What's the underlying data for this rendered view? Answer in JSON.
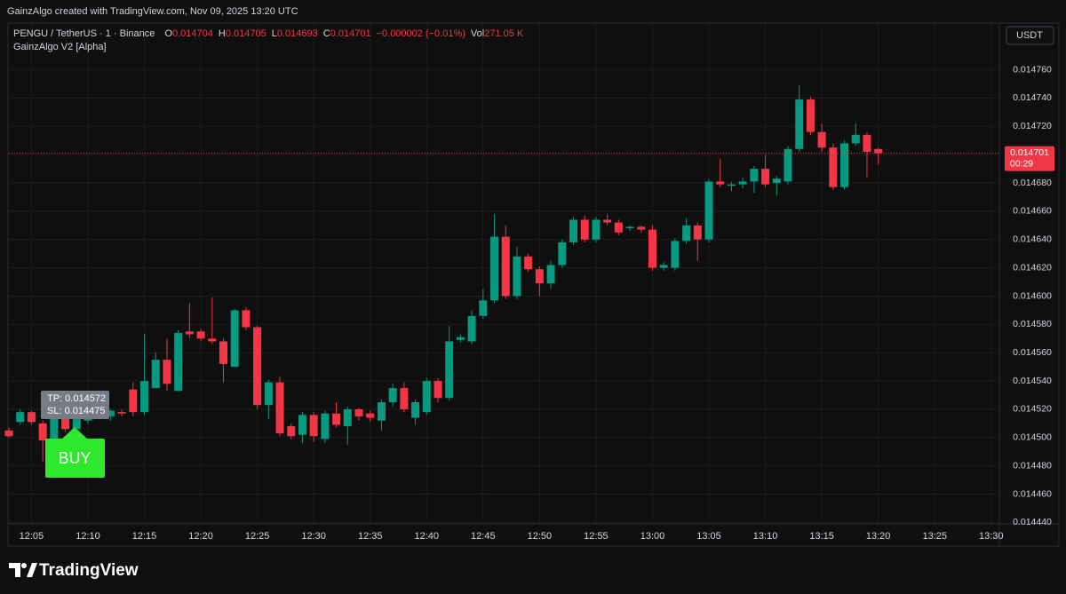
{
  "caption": "GainzAlgo created with TradingView.com, Nov 09, 2025 13:20 UTC",
  "brand": "TradingView",
  "chart_data": {
    "type": "candlestick",
    "title": "PENGU / TetherUS · 1 · Binance",
    "indicator": "GainzAlgo V2 [Alpha]",
    "header_ohlc": [
      {
        "key": "O",
        "value": "0.014704"
      },
      {
        "key": "H",
        "value": "0.014705"
      },
      {
        "key": "L",
        "value": "0.014693"
      },
      {
        "key": "C",
        "value": "0.014701"
      }
    ],
    "change": "−0.000002 (−0.01%)",
    "volume_key": "Vol",
    "volume": "271.05 K",
    "currency": "USDT",
    "up_color": "#089981",
    "down_color": "#f23645",
    "open": [
      0.014505,
      0.014511,
      0.014518,
      0.01451,
      0.014498,
      0.014514,
      0.014506,
      0.014512,
      0.014515,
      0.014515,
      0.014518,
      0.014534,
      0.014518,
      0.014535,
      0.014555,
      0.014533,
      0.014575,
      0.014575,
      0.01457,
      0.014568,
      0.01455,
      0.01459,
      0.014578,
      0.014523,
      0.014539,
      0.014508,
      0.014502,
      0.014516,
      0.014499,
      0.014517,
      0.014508,
      0.01452,
      0.014517,
      0.014512,
      0.014525,
      0.014535,
      0.014514,
      0.014518,
      0.01454,
      0.014528,
      0.014569,
      0.014568,
      0.014586,
      0.014597,
      0.014642,
      0.0146,
      0.014628,
      0.014619,
      0.014609,
      0.014622,
      0.014638,
      0.014654,
      0.01464,
      0.014654,
      0.014652,
      0.014648,
      0.014649,
      0.014647,
      0.01462,
      0.01462,
      0.014639,
      0.01465,
      0.01464,
      0.014681,
      0.014678,
      0.014679,
      0.014681,
      0.01469,
      0.01468,
      0.014681,
      0.014704,
      0.014739,
      0.014716,
      0.014705,
      0.014677,
      0.014708,
      0.014714,
      0.014704
    ],
    "high": [
      0.014507,
      0.01452,
      0.014519,
      0.014512,
      0.014518,
      0.014516,
      0.014515,
      0.014516,
      0.014518,
      0.01452,
      0.01452,
      0.014539,
      0.014573,
      0.01456,
      0.01457,
      0.014576,
      0.014595,
      0.014577,
      0.014599,
      0.01457,
      0.014591,
      0.014592,
      0.014579,
      0.014541,
      0.014543,
      0.01451,
      0.014518,
      0.014518,
      0.014519,
      0.014525,
      0.014522,
      0.014521,
      0.014519,
      0.014527,
      0.014538,
      0.014539,
      0.014527,
      0.014542,
      0.014542,
      0.014579,
      0.014573,
      0.01459,
      0.014605,
      0.014658,
      0.01465,
      0.014635,
      0.01463,
      0.014621,
      0.014625,
      0.01464,
      0.014656,
      0.014657,
      0.014656,
      0.014658,
      0.014654,
      0.01465,
      0.01465,
      0.01465,
      0.014624,
      0.014641,
      0.014655,
      0.014652,
      0.014683,
      0.014697,
      0.014681,
      0.014684,
      0.014692,
      0.0147,
      0.014685,
      0.014706,
      0.014749,
      0.014741,
      0.014722,
      0.014708,
      0.01471,
      0.014722,
      0.014716,
      0.014705
    ],
    "low": [
      0.0145,
      0.014509,
      0.014509,
      0.014483,
      0.014494,
      0.014504,
      0.014504,
      0.01451,
      0.014513,
      0.014512,
      0.014515,
      0.014515,
      0.014516,
      0.014535,
      0.014533,
      0.014533,
      0.01457,
      0.014568,
      0.014566,
      0.014539,
      0.01455,
      0.014576,
      0.01452,
      0.014513,
      0.014501,
      0.014499,
      0.014496,
      0.014497,
      0.014496,
      0.014507,
      0.014495,
      0.014512,
      0.014511,
      0.014505,
      0.014522,
      0.014518,
      0.014509,
      0.014516,
      0.014525,
      0.014526,
      0.014567,
      0.014566,
      0.014584,
      0.014595,
      0.014598,
      0.014598,
      0.014617,
      0.0146,
      0.014605,
      0.01462,
      0.014636,
      0.014638,
      0.014638,
      0.01465,
      0.014643,
      0.014646,
      0.014645,
      0.014618,
      0.014618,
      0.014618,
      0.014637,
      0.014625,
      0.014638,
      0.014677,
      0.014674,
      0.014676,
      0.014673,
      0.014677,
      0.014671,
      0.014679,
      0.014702,
      0.014714,
      0.014702,
      0.014675,
      0.014675,
      0.014706,
      0.014684,
      0.014693
    ],
    "close": [
      0.014501,
      0.014518,
      0.014511,
      0.014498,
      0.014514,
      0.014506,
      0.014513,
      0.014514,
      0.014516,
      0.014519,
      0.014517,
      0.014518,
      0.01454,
      0.014555,
      0.014538,
      0.014574,
      0.014573,
      0.01457,
      0.014568,
      0.014552,
      0.01459,
      0.014578,
      0.014523,
      0.014539,
      0.014503,
      0.014501,
      0.014516,
      0.014501,
      0.014517,
      0.014509,
      0.01452,
      0.014515,
      0.014514,
      0.014525,
      0.014535,
      0.01452,
      0.014525,
      0.01454,
      0.014528,
      0.014568,
      0.014571,
      0.014586,
      0.014597,
      0.014642,
      0.0146,
      0.014628,
      0.014619,
      0.014609,
      0.014622,
      0.014638,
      0.014654,
      0.01464,
      0.014654,
      0.014652,
      0.014645,
      0.014649,
      0.014647,
      0.01462,
      0.014622,
      0.014639,
      0.01465,
      0.01464,
      0.014681,
      0.014679,
      0.014679,
      0.014681,
      0.01469,
      0.014679,
      0.014683,
      0.014704,
      0.014739,
      0.014716,
      0.014705,
      0.014677,
      0.014708,
      0.014714,
      0.014702,
      0.014701
    ],
    "ylim": [
      0.014439,
      0.014793
    ],
    "yticks": [
      {
        "value": 0.01444,
        "label": "0.014440"
      },
      {
        "value": 0.01446,
        "label": "0.014460"
      },
      {
        "value": 0.01448,
        "label": "0.014480"
      },
      {
        "value": 0.0145,
        "label": "0.014500"
      },
      {
        "value": 0.01452,
        "label": "0.014520"
      },
      {
        "value": 0.01454,
        "label": "0.014540"
      },
      {
        "value": 0.01456,
        "label": "0.014560"
      },
      {
        "value": 0.01458,
        "label": "0.014580"
      },
      {
        "value": 0.0146,
        "label": "0.014600"
      },
      {
        "value": 0.01462,
        "label": "0.014620"
      },
      {
        "value": 0.01464,
        "label": "0.014640"
      },
      {
        "value": 0.01466,
        "label": "0.014660"
      },
      {
        "value": 0.01468,
        "label": "0.014680"
      },
      {
        "value": 0.0147,
        "label": "0.014700"
      },
      {
        "value": 0.01472,
        "label": "0.014720"
      },
      {
        "value": 0.01474,
        "label": "0.014740"
      },
      {
        "value": 0.01476,
        "label": "0.014760"
      }
    ],
    "xticks": [
      "12:05",
      "12:10",
      "12:15",
      "12:20",
      "12:25",
      "12:30",
      "12:35",
      "12:40",
      "12:45",
      "12:50",
      "12:55",
      "13:00",
      "13:05",
      "13:10",
      "13:15",
      "13:20",
      "13:25",
      "13:30"
    ],
    "grid": true,
    "price_line": {
      "value": 0.014701,
      "label": "0.014701",
      "countdown": "00:29"
    },
    "annotations": [
      "TP: 0.014572",
      "SL: 0.014475"
    ],
    "signal": "BUY"
  }
}
